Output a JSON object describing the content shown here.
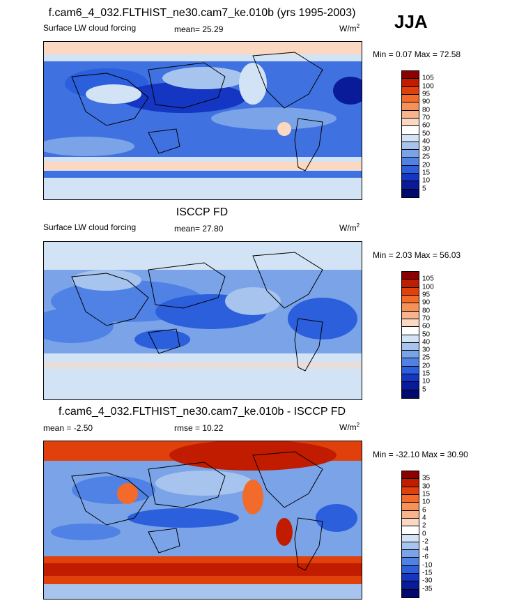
{
  "season": "JJA",
  "panels": [
    {
      "title": "f.cam6_4_032.FLTHIST_ne30.cam7_ke.010b (yrs 1995-2003)",
      "left_label": "Surface LW cloud forcing",
      "stat_label": "mean=  25.29",
      "units": "W/m",
      "units_sup": "2",
      "minmax": "Min =   0.07 Max =  72.58",
      "levels": [
        "105",
        "100",
        "95",
        "90",
        "80",
        "70",
        "60",
        "50",
        "40",
        "30",
        "25",
        "20",
        "15",
        "10",
        "5"
      ],
      "colors": [
        "#8b0000",
        "#c11c00",
        "#e0410c",
        "#f26b2a",
        "#f7915a",
        "#f8b48e",
        "#fbd8c2",
        "#ffffff",
        "#d2e3f5",
        "#a7c4ee",
        "#7aa3e8",
        "#4f82e4",
        "#2b5fdc",
        "#1536c3",
        "#0a1b9a",
        "#000a6e"
      ]
    },
    {
      "title": "ISCCP FD",
      "left_label": "Surface LW cloud forcing",
      "stat_label": "mean=  27.80",
      "units": "W/m",
      "units_sup": "2",
      "minmax": "Min =   2.03 Max =  56.03",
      "levels": [
        "105",
        "100",
        "95",
        "90",
        "80",
        "70",
        "60",
        "50",
        "40",
        "30",
        "25",
        "20",
        "15",
        "10",
        "5"
      ],
      "colors": [
        "#8b0000",
        "#c11c00",
        "#e0410c",
        "#f26b2a",
        "#f7915a",
        "#f8b48e",
        "#fbd8c2",
        "#ffffff",
        "#d2e3f5",
        "#a7c4ee",
        "#7aa3e8",
        "#4f82e4",
        "#2b5fdc",
        "#1536c3",
        "#0a1b9a",
        "#000a6e"
      ]
    },
    {
      "title": "f.cam6_4_032.FLTHIST_ne30.cam7_ke.010b - ISCCP FD",
      "left_label": "mean =  -2.50",
      "stat_label": "rmse =  10.22",
      "units": "W/m",
      "units_sup": "2",
      "minmax": "Min = -32.10 Max =  30.90",
      "levels": [
        "35",
        "30",
        "15",
        "10",
        "6",
        "4",
        "2",
        "0",
        "-2",
        "-4",
        "-6",
        "-10",
        "-15",
        "-30",
        "-35"
      ],
      "colors": [
        "#8b0000",
        "#c11c00",
        "#e0410c",
        "#f26b2a",
        "#f7915a",
        "#f8b48e",
        "#fbd8c2",
        "#ffffff",
        "#d2e3f5",
        "#a7c4ee",
        "#7aa3e8",
        "#4f82e4",
        "#2b5fdc",
        "#1536c3",
        "#0a1b9a",
        "#000a6e"
      ]
    }
  ]
}
